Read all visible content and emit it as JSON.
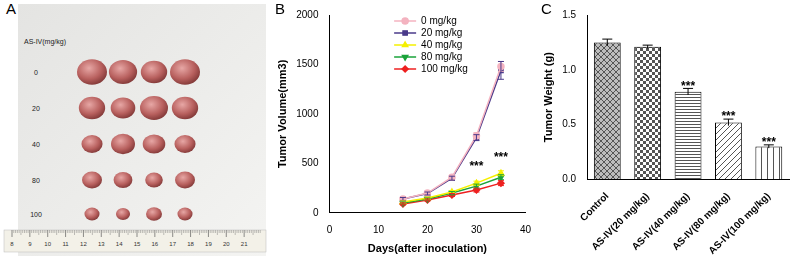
{
  "photo": {
    "panel": "A",
    "dose_title": "AS-IV(mg/kg)",
    "rows": [
      "0",
      "20",
      "40",
      "80",
      "100"
    ],
    "tumors_per_row": 4,
    "ruler": [
      "8",
      "9",
      "10",
      "11",
      "12",
      "13",
      "14",
      "15",
      "16",
      "17",
      "18",
      "19",
      "20",
      "21"
    ]
  },
  "chart_data": [
    {
      "panel": "B",
      "type": "line",
      "x_label": "Days(after inoculation)",
      "y_label": "Tumor Volume(mm3)",
      "x": [
        15,
        20,
        25,
        30,
        35
      ],
      "xlim": [
        0,
        40
      ],
      "xticks": [
        0,
        10,
        20,
        30,
        40
      ],
      "ylim": [
        0,
        2000
      ],
      "yticks": [
        0,
        500,
        1000,
        1500,
        2000
      ],
      "grid": false,
      "legend": "upper left",
      "series": [
        {
          "name": "0 mg/kg",
          "color": "#f4b3c0",
          "marker": "circle",
          "values": [
            140,
            200,
            360,
            780,
            1480
          ],
          "errors": [
            15,
            15,
            20,
            30,
            50
          ]
        },
        {
          "name": "20 mg/kg",
          "color": "#4a3a8a",
          "marker": "square",
          "values": [
            140,
            195,
            350,
            760,
            1440
          ],
          "errors": [
            15,
            15,
            20,
            30,
            90
          ]
        },
        {
          "name": "40 mg/kg",
          "color": "#f5f000",
          "marker": "triangle",
          "values": [
            110,
            150,
            210,
            300,
            400
          ],
          "errors": [
            10,
            10,
            15,
            20,
            25
          ]
        },
        {
          "name": "80 mg/kg",
          "color": "#1aa33a",
          "marker": "triangle-down",
          "values": [
            100,
            140,
            200,
            270,
            360
          ],
          "errors": [
            10,
            10,
            15,
            20,
            25
          ]
        },
        {
          "name": "100 mg/kg",
          "color": "#ee2020",
          "marker": "diamond",
          "values": [
            90,
            130,
            180,
            230,
            300
          ],
          "errors": [
            10,
            10,
            15,
            20,
            25
          ]
        }
      ],
      "annotations": [
        {
          "x": 30,
          "y": 470,
          "text": "***"
        },
        {
          "x": 35,
          "y": 560,
          "text": "***"
        }
      ]
    },
    {
      "panel": "C",
      "type": "bar",
      "y_label": "Tumor Weight (g)",
      "categories": [
        "Control",
        "AS-IV(20 mg/kg)",
        "AS-IV(40 mg/kg)",
        "AS-IV(80 mg/kg)",
        "AS-IV(100 mg/kg)"
      ],
      "values": [
        1.25,
        1.21,
        0.8,
        0.52,
        0.3
      ],
      "errors": [
        0.03,
        0.015,
        0.03,
        0.03,
        0.015
      ],
      "color": "#555555",
      "ylim": [
        0,
        1.5
      ],
      "yticks": [
        {
          "value": 0,
          "label": "0.0"
        },
        0.5,
        {
          "value": 1,
          "label": "1.0"
        },
        1.5
      ],
      "grid": false,
      "annotations": [
        {
          "category": "AS-IV(40 mg/kg)",
          "text": "***"
        },
        {
          "category": "AS-IV(80 mg/kg)",
          "text": "***"
        },
        {
          "category": "AS-IV(100 mg/kg)",
          "text": "***"
        }
      ]
    }
  ]
}
